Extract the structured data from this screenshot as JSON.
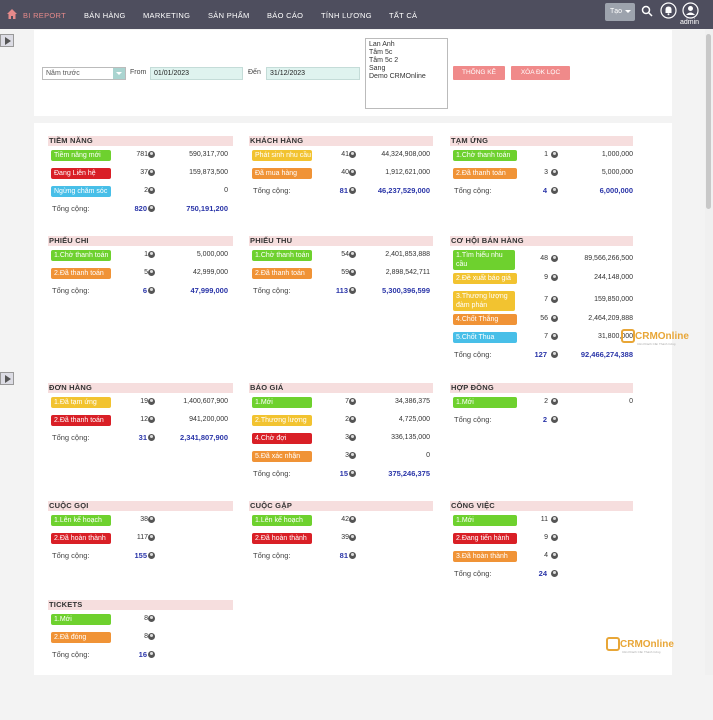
{
  "header": {
    "nav": [
      "BI REPORT",
      "BÁN HÀNG",
      "MARKETING",
      "SẢN PHẨM",
      "BÁO CÁO",
      "TÍNH LƯƠNG",
      "TẤT CẢ"
    ],
    "create_label": "Tạo",
    "user": "admin"
  },
  "filter": {
    "period": "Năm trước",
    "from_label": "From",
    "from": "01/01/2023",
    "to_label": "Đến",
    "to": "31/12/2023",
    "users": [
      "Lan Anh",
      "Tâm 5c",
      "Tâm 5c 2",
      "Sang",
      "Demo CRMOnline"
    ],
    "stats_btn": "THỐNG KÊ",
    "clear_btn": "XÓA ĐK LỌC"
  },
  "colors": {
    "green": "#6ed12e",
    "red": "#d91f26",
    "blue": "#48bfe8",
    "yellow": "#f2c330",
    "orange": "#f09336",
    "total": "#2a35a8",
    "header_bg": "#f6dede",
    "button": "#f08a8a",
    "topbar": "#4e4e5e"
  },
  "watermark": {
    "brand": "CRMOnline",
    "slogan": "Cần Khách Cần Thành Công"
  },
  "total_label": "Tổng cộng:",
  "sections": [
    {
      "title": "TIỀM NĂNG",
      "rows": [
        {
          "label": "Tiềm năng mới",
          "color": "green",
          "count": "781",
          "amount": "590,317,700"
        },
        {
          "label": "Đang Liên hệ",
          "color": "red",
          "count": "37",
          "amount": "159,873,500"
        },
        {
          "label": "Ngừng chăm sóc",
          "color": "blue",
          "count": "2",
          "amount": "0"
        }
      ],
      "total_count": "820",
      "total_amount": "750,191,200"
    },
    {
      "title": "KHÁCH HÀNG",
      "rows": [
        {
          "label": "Phát sinh nhu cầu",
          "color": "yellow",
          "count": "41",
          "amount": "44,324,908,000"
        },
        {
          "label": "Đã mua hàng",
          "color": "orange",
          "count": "40",
          "amount": "1,912,621,000"
        }
      ],
      "total_count": "81",
      "total_amount": "46,237,529,000"
    },
    {
      "title": "TẠM ỨNG",
      "rows": [
        {
          "label": "1.Chờ thanh toán",
          "color": "green",
          "count": "1",
          "amount": "1,000,000"
        },
        {
          "label": "2.Đã thanh toán",
          "color": "orange",
          "count": "3",
          "amount": "5,000,000"
        }
      ],
      "total_count": "4",
      "total_amount": "6,000,000"
    },
    {
      "title": "PHIẾU CHI",
      "rows": [
        {
          "label": "1.Chờ thanh toán",
          "color": "green",
          "count": "1",
          "amount": "5,000,000"
        },
        {
          "label": "2.Đã thanh toán",
          "color": "orange",
          "count": "5",
          "amount": "42,999,000"
        }
      ],
      "total_count": "6",
      "total_amount": "47,999,000"
    },
    {
      "title": "PHIẾU THU",
      "rows": [
        {
          "label": "1.Chờ thanh toán",
          "color": "green",
          "count": "54",
          "amount": "2,401,853,888"
        },
        {
          "label": "2.Đã thanh toán",
          "color": "orange",
          "count": "59",
          "amount": "2,898,542,711"
        }
      ],
      "total_count": "113",
      "total_amount": "5,300,396,599"
    },
    {
      "title": "CƠ HỘI BÁN HÀNG",
      "rows": [
        {
          "label": "1.Tìm hiểu nhu cầu",
          "color": "green",
          "count": "48",
          "amount": "89,566,266,500",
          "tall": true
        },
        {
          "label": "2.Đề xuất báo giá",
          "color": "yellow",
          "count": "9",
          "amount": "244,148,000"
        },
        {
          "label": "3.Thương lượng đàm phán",
          "color": "yellow",
          "count": "7",
          "amount": "159,850,000",
          "tall": true
        },
        {
          "label": "4.Chốt Thắng",
          "color": "orange",
          "count": "56",
          "amount": "2,464,209,888"
        },
        {
          "label": "5.Chốt Thua",
          "color": "blue",
          "count": "7",
          "amount": "31,800,000"
        }
      ],
      "total_count": "127",
      "total_amount": "92,466,274,388"
    },
    {
      "title": "ĐƠN HÀNG",
      "rows": [
        {
          "label": "1.Đã tạm ứng",
          "color": "yellow",
          "count": "19",
          "amount": "1,400,607,900"
        },
        {
          "label": "2.Đã thanh toán",
          "color": "red",
          "count": "12",
          "amount": "941,200,000"
        }
      ],
      "total_count": "31",
      "total_amount": "2,341,807,900"
    },
    {
      "title": "BÁO GIÁ",
      "rows": [
        {
          "label": "1.Mới",
          "color": "green",
          "count": "7",
          "amount": "34,386,375"
        },
        {
          "label": "2.Thương lượng",
          "color": "yellow",
          "count": "2",
          "amount": "4,725,000"
        },
        {
          "label": "4.Chờ đợi",
          "color": "red",
          "count": "3",
          "amount": "336,135,000"
        },
        {
          "label": "5.Đã xác nhận",
          "color": "orange",
          "count": "3",
          "amount": "0"
        }
      ],
      "total_count": "15",
      "total_amount": "375,246,375"
    },
    {
      "title": "HỢP ĐỒNG",
      "rows": [
        {
          "label": "1.Mới",
          "color": "green",
          "count": "2",
          "amount": "0"
        }
      ],
      "total_count": "2",
      "total_amount": ""
    },
    {
      "title": "CUỘC GỌI",
      "rows": [
        {
          "label": "1.Lên kế hoạch",
          "color": "green",
          "count": "38",
          "amount": ""
        },
        {
          "label": "2.Đã hoàn thành",
          "color": "red",
          "count": "117",
          "amount": ""
        }
      ],
      "total_count": "155",
      "total_amount": ""
    },
    {
      "title": "CUỘC GẶP",
      "rows": [
        {
          "label": "1.Lên kế hoạch",
          "color": "green",
          "count": "42",
          "amount": ""
        },
        {
          "label": "2.Đã hoàn thành",
          "color": "red",
          "count": "39",
          "amount": ""
        }
      ],
      "total_count": "81",
      "total_amount": ""
    },
    {
      "title": "CÔNG VIỆC",
      "rows": [
        {
          "label": "1.Mới",
          "color": "green",
          "count": "11",
          "amount": ""
        },
        {
          "label": "2.Đang tiến hành",
          "color": "red",
          "count": "9",
          "amount": ""
        },
        {
          "label": "3.Đã hoàn thành",
          "color": "orange",
          "count": "4",
          "amount": ""
        }
      ],
      "total_count": "24",
      "total_amount": ""
    },
    {
      "title": "TICKETS",
      "rows": [
        {
          "label": "1.Mới",
          "color": "green",
          "count": "8",
          "amount": ""
        },
        {
          "label": "2.Đã đóng",
          "color": "orange",
          "count": "8",
          "amount": ""
        }
      ],
      "total_count": "16",
      "total_amount": ""
    }
  ]
}
